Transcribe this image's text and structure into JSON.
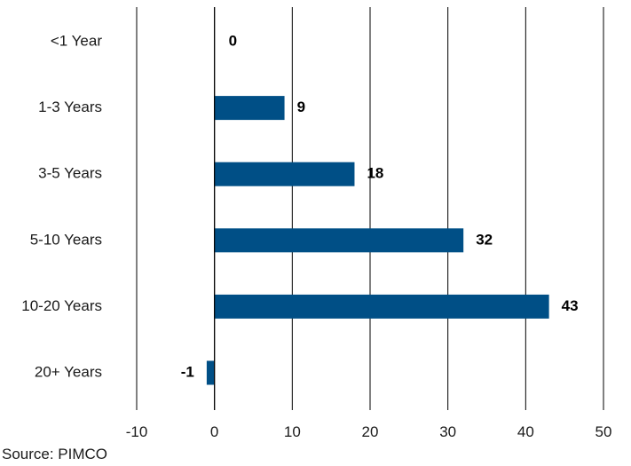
{
  "chart_data": {
    "type": "bar",
    "orientation": "horizontal",
    "categories": [
      "<1 Year",
      "1-3 Years",
      "3-5 Years",
      "5-10 Years",
      "10-20 Years",
      "20+ Years"
    ],
    "values": [
      0,
      9,
      18,
      32,
      43,
      -1
    ],
    "data_labels": [
      "0",
      "9",
      "18",
      "32",
      "43",
      "-1"
    ],
    "x_ticks": [
      -10,
      0,
      10,
      20,
      30,
      40,
      50
    ],
    "xlim": [
      -10,
      50
    ],
    "grid": "vertical",
    "legend": "none",
    "bar_color": "#004f86",
    "gridline_color": "#000000"
  },
  "source": "Source: PIMCO"
}
